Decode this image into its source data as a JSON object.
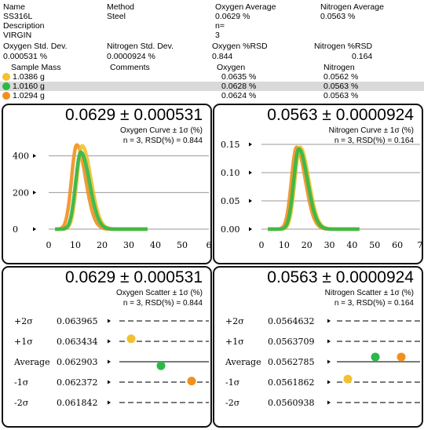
{
  "header": {
    "row1": {
      "name_label": "Name",
      "method_label": "Method",
      "oxy_avg_label": "Oxygen Average",
      "nit_avg_label": "Nitrogen Average"
    },
    "row2": {
      "name": "SS316L",
      "method": "Steel",
      "oxy_avg": "0.0629 %",
      "nit_avg": "0.0563 %"
    },
    "row3": {
      "desc_label": "Description",
      "n_label": "n="
    },
    "row4": {
      "desc": "VIRGIN",
      "n": "3"
    },
    "row5": {
      "oxy_sd_label": "Oxygen Std. Dev.",
      "nit_sd_label": "Nitrogen Std. Dev.",
      "oxy_rsd_label": "Oxygen %RSD",
      "nit_rsd_label": "Nitrogen %RSD"
    },
    "row6": {
      "oxy_sd": "0.000531 %",
      "nit_sd": "0.0000924 %",
      "oxy_rsd": "0.844",
      "nit_rsd": "0.164"
    }
  },
  "samples": {
    "columns": [
      "Sample Mass",
      "Comments",
      "Oxygen",
      "Nitrogen"
    ],
    "rows": [
      {
        "mass": "1.0386 g",
        "comments": "",
        "oxygen": "0.0635 %",
        "nitrogen": "0.0562 %",
        "color": "#f2c12e"
      },
      {
        "mass": "1.0160 g",
        "comments": "",
        "oxygen": "0.0628 %",
        "nitrogen": "0.0563 %",
        "color": "#2db84a"
      },
      {
        "mass": "1.0294 g",
        "comments": "",
        "oxygen": "0.0624 %",
        "nitrogen": "0.0563 %",
        "color": "#f0901e"
      }
    ],
    "selected_index": 1
  },
  "oxygen_curve": {
    "big": "0.0629 ± 0.000531",
    "title": "Oxygen Curve ± 1σ (%)",
    "stats": "n = 3, RSD(%) = 0.844"
  },
  "nitrogen_curve": {
    "big": "0.0563 ± 0.0000924",
    "title": "Nitrogen Curve ± 1σ (%)",
    "stats": "n = 3, RSD(%) = 0.164"
  },
  "oxygen_scatter": {
    "big": "0.0629 ± 0.000531",
    "title": "Oxygen Scatter ± 1σ (%)",
    "stats": "n = 3, RSD(%) = 0.844",
    "levels": [
      {
        "label": "+2σ",
        "value": "0.063965"
      },
      {
        "label": "+1σ",
        "value": "0.063434"
      },
      {
        "label": "Average",
        "value": "0.062903"
      },
      {
        "label": "-1σ",
        "value": "0.062372"
      },
      {
        "label": "-2σ",
        "value": "0.061842"
      }
    ]
  },
  "nitrogen_scatter": {
    "big": "0.0563 ± 0.0000924",
    "title": "Nitrogen Scatter ± 1σ (%)",
    "stats": "n = 3, RSD(%) = 0.164",
    "levels": [
      {
        "label": "+2σ",
        "value": "0.0564632"
      },
      {
        "label": "+1σ",
        "value": "0.0563709"
      },
      {
        "label": "Average",
        "value": "0.0562785"
      },
      {
        "label": "-1σ",
        "value": "0.0561862"
      },
      {
        "label": "-2σ",
        "value": "0.0560938"
      }
    ]
  },
  "chart_data": [
    {
      "type": "line",
      "title": "Oxygen Curve ± 1σ (%)",
      "x_ticks": [
        "0",
        "10",
        "20",
        "30",
        "40",
        "50",
        "6"
      ],
      "y_ticks": [
        "400",
        "200",
        "0"
      ],
      "xlim": [
        0,
        60
      ],
      "ylim": [
        0,
        480
      ],
      "series": [
        {
          "color": "#f0901e",
          "peak_x": 10.5,
          "peak_y": 460
        },
        {
          "color": "#f2c12e",
          "peak_x": 12.5,
          "peak_y": 455
        },
        {
          "color": "#2db84a",
          "peak_x": 12.0,
          "peak_y": 420
        }
      ]
    },
    {
      "type": "line",
      "title": "Nitrogen Curve ± 1σ (%)",
      "x_ticks": [
        "0",
        "10",
        "20",
        "30",
        "40",
        "50",
        "60",
        "7"
      ],
      "y_ticks": [
        "0.15",
        "0.10",
        "0.05",
        "0.00"
      ],
      "xlim": [
        0,
        70
      ],
      "ylim": [
        0,
        0.15
      ],
      "series": [
        {
          "color": "#f0901e",
          "peak_x": 15.5,
          "peak_y": 0.145
        },
        {
          "color": "#f2c12e",
          "peak_x": 17.0,
          "peak_y": 0.145
        },
        {
          "color": "#2db84a",
          "peak_x": 16.5,
          "peak_y": 0.142
        }
      ]
    },
    {
      "type": "scatter",
      "title": "Oxygen Scatter ± 1σ (%)",
      "ylim": [
        0.061842,
        0.063965
      ],
      "points": [
        {
          "x": 1,
          "y": 0.0635,
          "color": "#f2c12e"
        },
        {
          "x": 2,
          "y": 0.0628,
          "color": "#2db84a"
        },
        {
          "x": 3,
          "y": 0.0624,
          "color": "#f0901e"
        }
      ]
    },
    {
      "type": "scatter",
      "title": "Nitrogen Scatter ± 1σ (%)",
      "ylim": [
        0.0560938,
        0.0564632
      ],
      "points": [
        {
          "x": 1,
          "y": 0.0562,
          "color": "#f2c12e"
        },
        {
          "x": 2,
          "y": 0.0563,
          "color": "#2db84a"
        },
        {
          "x": 3,
          "y": 0.0563,
          "color": "#f0901e"
        }
      ]
    }
  ]
}
